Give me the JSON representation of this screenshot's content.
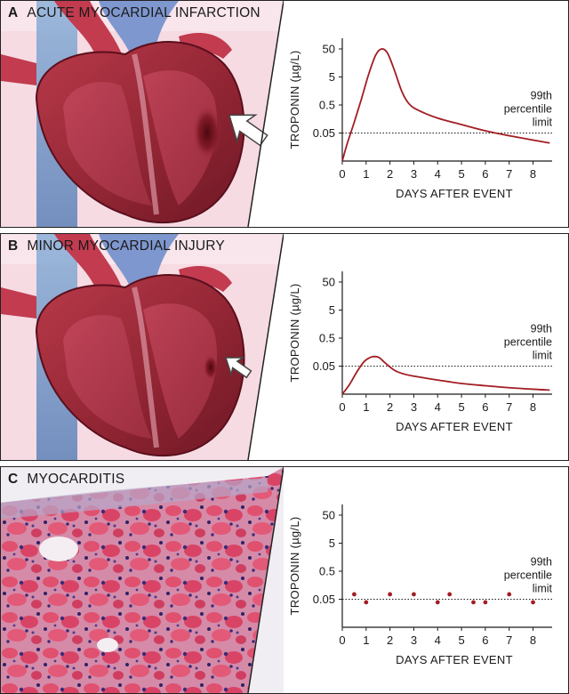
{
  "panels": [
    {
      "letter": "A",
      "title": "ACUTE MYOCARDIAL INFARCTION",
      "illustration": "heart-with-large-infarct-arrow",
      "chart_data": {
        "type": "line",
        "xlabel": "DAYS AFTER EVENT",
        "ylabel": "TROPONIN (µg/L)",
        "x_ticks": [
          "0",
          "1",
          "2",
          "3",
          "4",
          "5",
          "6",
          "7",
          "8"
        ],
        "y_ticks": [
          "0.05",
          "0.5",
          "5",
          "50"
        ],
        "xlim": [
          0,
          8.8
        ],
        "ylim_log": [
          0.005,
          120
        ],
        "y_scale": "log",
        "threshold": {
          "value": 0.05,
          "label_lines": [
            "99th",
            "percentile",
            "limit"
          ]
        },
        "series": [
          {
            "color": "#a31d24",
            "x": [
              0,
              0.2,
              0.5,
              0.8,
              1.1,
              1.4,
              1.65,
              1.9,
              2.2,
              2.5,
              2.8,
              3.2,
              4,
              5,
              6,
              7,
              8,
              8.7
            ],
            "y": [
              0.005,
              0.02,
              0.12,
              0.8,
              6,
              30,
              50,
              35,
              8,
              1.5,
              0.55,
              0.32,
              0.17,
              0.1,
              0.06,
              0.04,
              0.028,
              0.022
            ]
          }
        ]
      }
    },
    {
      "letter": "B",
      "title": "MINOR MYOCARDIAL INJURY",
      "illustration": "heart-with-small-injury-arrow",
      "chart_data": {
        "type": "line",
        "xlabel": "DAYS AFTER EVENT",
        "ylabel": "TROPONIN (µg/L)",
        "x_ticks": [
          "0",
          "1",
          "2",
          "3",
          "4",
          "5",
          "6",
          "7",
          "8"
        ],
        "y_ticks": [
          "0.05",
          "0.5",
          "5",
          "50"
        ],
        "xlim": [
          0,
          8.8
        ],
        "ylim_log": [
          0.005,
          120
        ],
        "y_scale": "log",
        "threshold": {
          "value": 0.05,
          "label_lines": [
            "99th",
            "percentile",
            "limit"
          ]
        },
        "series": [
          {
            "color": "#a31d24",
            "x": [
              0,
              0.3,
              0.6,
              0.9,
              1.15,
              1.35,
              1.55,
              1.8,
              2.2,
              2.6,
              3,
              4,
              5,
              6,
              7,
              8,
              8.7
            ],
            "y": [
              0.005,
              0.011,
              0.03,
              0.07,
              0.1,
              0.11,
              0.1,
              0.065,
              0.035,
              0.026,
              0.022,
              0.016,
              0.012,
              0.01,
              0.0085,
              0.0075,
              0.007
            ]
          }
        ]
      }
    },
    {
      "letter": "C",
      "title": "MYOCARDITIS",
      "illustration": "histology-micrograph",
      "chart_data": {
        "type": "scatter",
        "xlabel": "DAYS AFTER EVENT",
        "ylabel": "TROPONIN (µg/L)",
        "x_ticks": [
          "0",
          "1",
          "2",
          "3",
          "4",
          "5",
          "6",
          "7",
          "8"
        ],
        "y_ticks": [
          "0.05",
          "0.5",
          "5",
          "50"
        ],
        "xlim": [
          0,
          8.8
        ],
        "ylim_log": [
          0.005,
          120
        ],
        "y_scale": "log",
        "threshold": {
          "value": 0.05,
          "label_lines": [
            "99th",
            "percentile",
            "limit"
          ]
        },
        "series": [
          {
            "color": "#a31d24",
            "x": [
              0.5,
              1,
              2,
              3,
              4,
              4.5,
              5.5,
              6,
              7,
              8
            ],
            "y": [
              0.075,
              0.039,
              0.075,
              0.075,
              0.039,
              0.075,
              0.039,
              0.039,
              0.075,
              0.039
            ]
          }
        ]
      }
    }
  ]
}
